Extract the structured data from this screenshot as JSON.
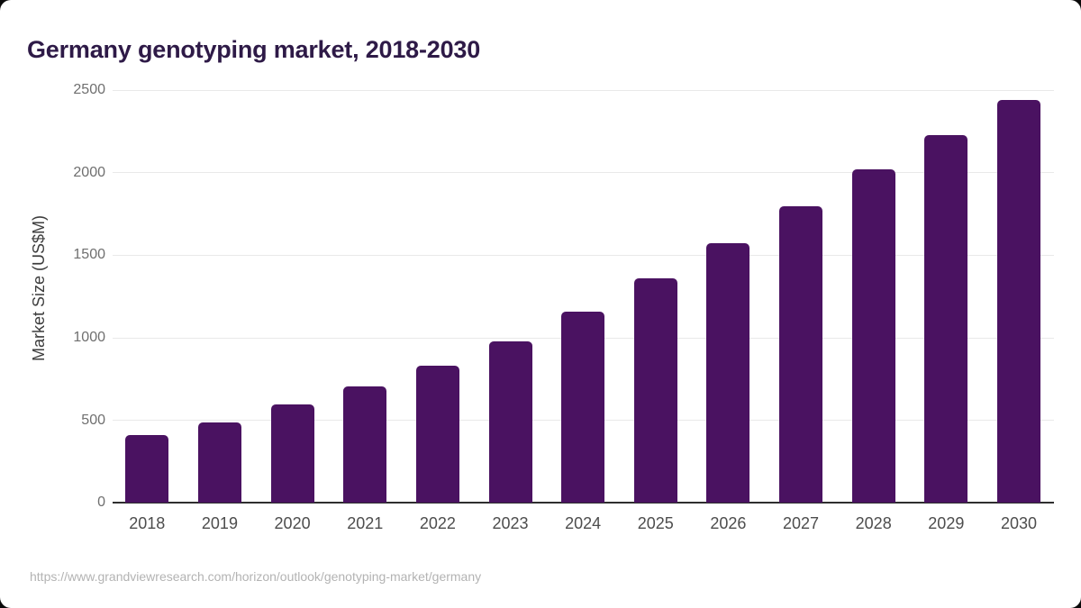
{
  "title": "Germany genotyping market, 2018-2030",
  "source_url": "https://www.grandviewresearch.com/horizon/outlook/genotyping-market/germany",
  "colors": {
    "bar": "#4a1261",
    "title": "#2e1a47",
    "y_axis_title": "#3d3d3d",
    "y_tick": "#6f6f6f",
    "x_tick": "#4d4d4d",
    "gridline": "#e9e9e9",
    "baseline": "#2e2e2e",
    "footer": "#b3b3b3",
    "card_background": "#ffffff"
  },
  "chart_data": {
    "type": "bar",
    "title": "Germany genotyping market, 2018-2030",
    "categories": [
      "2018",
      "2019",
      "2020",
      "2021",
      "2022",
      "2023",
      "2024",
      "2025",
      "2026",
      "2027",
      "2028",
      "2029",
      "2030"
    ],
    "values": [
      412,
      486,
      595,
      704,
      832,
      981,
      1160,
      1361,
      1574,
      1797,
      2022,
      2228,
      2443
    ],
    "xlabel": "",
    "ylabel": "Market Size (US$M)",
    "ylim": [
      0,
      2500
    ],
    "yticks": [
      0,
      500,
      1000,
      1500,
      2000,
      2500
    ],
    "ytick_labels": [
      "0",
      "500",
      "1000",
      "1500",
      "2000",
      "2500"
    ],
    "grid": true,
    "legend": false,
    "bar_color": "#4a1261"
  }
}
